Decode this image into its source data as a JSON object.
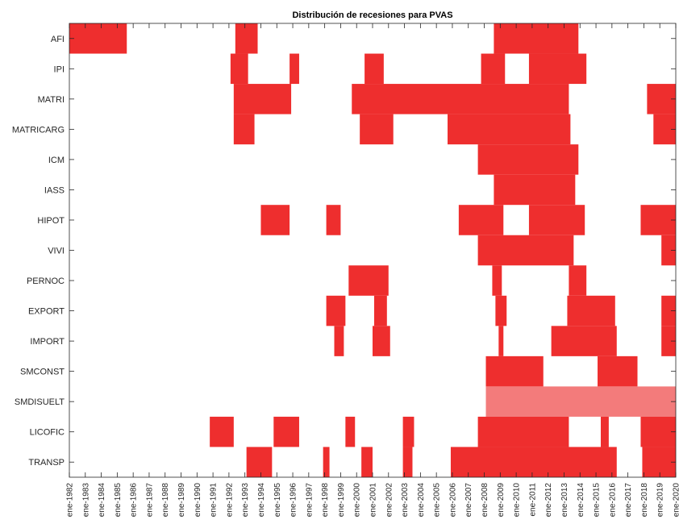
{
  "chart_data": {
    "type": "heatmap",
    "title": "Distribución de recesiones para PVAS",
    "xlabel": "",
    "ylabel": "",
    "xlim": [
      1982.0,
      2020.0
    ],
    "x_tick_labels": [
      "ene-1982",
      "ene-1983",
      "ene-1984",
      "ene-1985",
      "ene-1986",
      "ene-1987",
      "ene-1988",
      "ene-1989",
      "ene-1990",
      "ene-1991",
      "ene-1992",
      "ene-1993",
      "ene-1994",
      "ene-1995",
      "ene-1996",
      "ene-1997",
      "ene-1998",
      "ene-1999",
      "ene-2000",
      "ene-2001",
      "ene-2002",
      "ene-2003",
      "ene-2004",
      "ene-2005",
      "ene-2006",
      "ene-2007",
      "ene-2008",
      "ene-2009",
      "ene-2010",
      "ene-2011",
      "ene-2012",
      "ene-2013",
      "ene-2014",
      "ene-2015",
      "ene-2016",
      "ene-2017",
      "ene-2018",
      "ene-2019",
      "ene-2020"
    ],
    "colors": {
      "recession": "#ee2e2e",
      "recession_light": "#f37b7b",
      "frame": "#262626"
    },
    "grid": false,
    "series": [
      {
        "name": "AFI",
        "periods": [
          [
            1982.0,
            1985.6
          ],
          [
            1992.4,
            1993.8
          ],
          [
            2008.6,
            2013.9
          ]
        ]
      },
      {
        "name": "IPI",
        "periods": [
          [
            1992.1,
            1993.2
          ],
          [
            1995.8,
            1996.4
          ],
          [
            2000.5,
            2001.7
          ],
          [
            2007.8,
            2009.3
          ],
          [
            2010.8,
            2014.4
          ]
        ]
      },
      {
        "name": "MATRI",
        "periods": [
          [
            1992.3,
            1995.9
          ],
          [
            1999.7,
            2013.3
          ],
          [
            2018.2,
            2020.0
          ]
        ]
      },
      {
        "name": "MATRICARG",
        "periods": [
          [
            1992.3,
            1993.6
          ],
          [
            2000.2,
            2002.3
          ],
          [
            2005.7,
            2013.4
          ],
          [
            2018.6,
            2020.0
          ]
        ]
      },
      {
        "name": "ICM",
        "periods": [
          [
            2007.6,
            2013.9
          ]
        ]
      },
      {
        "name": "IASS",
        "periods": [
          [
            2008.6,
            2013.7
          ]
        ]
      },
      {
        "name": "HIPOT",
        "periods": [
          [
            1994.0,
            1995.8
          ],
          [
            1998.1,
            1999.0
          ],
          [
            2006.4,
            2009.2
          ],
          [
            2010.8,
            2014.3
          ],
          [
            2017.8,
            2020.0
          ]
        ]
      },
      {
        "name": "VIVI",
        "periods": [
          [
            2007.6,
            2013.6
          ],
          [
            2019.1,
            2020.0
          ]
        ]
      },
      {
        "name": "PERNOC",
        "periods": [
          [
            1999.5,
            2002.0
          ],
          [
            2008.5,
            2009.1
          ],
          [
            2013.3,
            2014.4
          ]
        ]
      },
      {
        "name": "EXPORT",
        "periods": [
          [
            1998.1,
            1999.3
          ],
          [
            2001.1,
            2001.9
          ],
          [
            2008.7,
            2009.4
          ],
          [
            2013.2,
            2016.2
          ],
          [
            2019.1,
            2020.0
          ]
        ]
      },
      {
        "name": "IMPORT",
        "periods": [
          [
            1998.6,
            1999.2
          ],
          [
            2001.0,
            2002.1
          ],
          [
            2008.9,
            2009.2
          ],
          [
            2012.2,
            2016.3
          ],
          [
            2019.1,
            2020.0
          ]
        ]
      },
      {
        "name": "SMCONST",
        "periods": [
          [
            2008.1,
            2011.7
          ],
          [
            2015.1,
            2017.6
          ]
        ]
      },
      {
        "name": "SMDISUELT",
        "periods": [
          [
            2008.1,
            2020.0
          ]
        ],
        "light": true
      },
      {
        "name": "LICOFIC",
        "periods": [
          [
            1990.8,
            1992.3
          ],
          [
            1994.8,
            1996.4
          ],
          [
            1999.3,
            1999.9
          ],
          [
            2002.9,
            2003.6
          ],
          [
            2007.6,
            2013.3
          ],
          [
            2015.3,
            2015.8
          ],
          [
            2017.8,
            2020.0
          ]
        ]
      },
      {
        "name": "TRANSP",
        "periods": [
          [
            1993.1,
            1994.7
          ],
          [
            1997.9,
            1998.3
          ],
          [
            2000.3,
            2001.0
          ],
          [
            2002.9,
            2003.5
          ],
          [
            2005.9,
            2016.3
          ],
          [
            2017.9,
            2020.0
          ]
        ]
      }
    ]
  }
}
